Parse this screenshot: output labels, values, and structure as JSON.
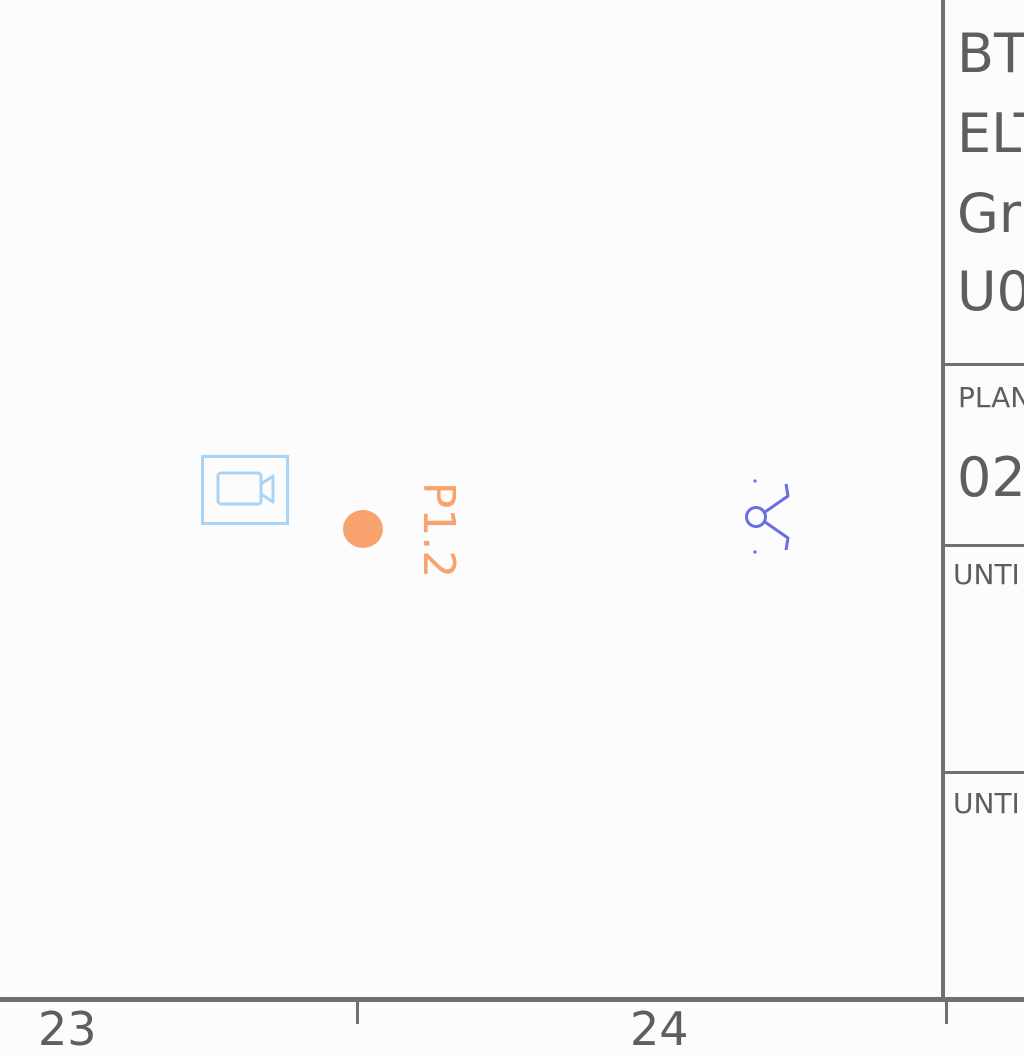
{
  "drawing": {
    "tag_label": "P1.2",
    "title_block": {
      "lines": [
        "BT",
        "ELT",
        "Gr",
        "U0"
      ],
      "plan_label": "PLAN",
      "plan_value": "02",
      "until_label_1": "UNTI",
      "until_label_2": "UNTI"
    },
    "grid_columns": [
      "23",
      "24"
    ]
  },
  "colors": {
    "camera": "#aad4f5",
    "tag": "#f8a36d",
    "network": "#6a6ee0",
    "frame": "#707070",
    "text": "#5e5e5e"
  },
  "icons": {
    "camera": "video-camera-icon",
    "network": "network-node-icon"
  }
}
